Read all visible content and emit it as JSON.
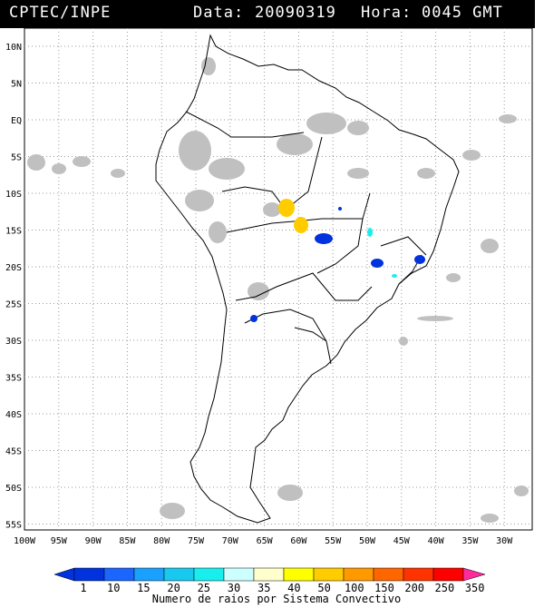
{
  "header": {
    "source": "CPTEC/INPE",
    "date_label": "Data:",
    "date_value": "20090319",
    "time_label": "Hora:",
    "time_value": "0045 GMT"
  },
  "map": {
    "lat_ticks": [
      "10N",
      "5N",
      "EQ",
      "5S",
      "10S",
      "15S",
      "20S",
      "25S",
      "30S",
      "35S",
      "40S",
      "45S",
      "50S",
      "55S"
    ],
    "lon_ticks": [
      "100W",
      "95W",
      "90W",
      "85W",
      "80W",
      "75W",
      "70W",
      "65W",
      "60W",
      "55W",
      "50W",
      "45W",
      "40W",
      "35W",
      "30W"
    ],
    "grid": true,
    "extent": {
      "lon": [
        -100,
        -26
      ],
      "lat": [
        -56,
        12
      ]
    }
  },
  "colorbar": {
    "labels": [
      "1",
      "10",
      "15",
      "20",
      "25",
      "30",
      "35",
      "40",
      "50",
      "100",
      "150",
      "200",
      "250",
      "350"
    ],
    "colors": [
      "#0033dd",
      "#1a66ff",
      "#1aa0ff",
      "#18c8ee",
      "#19eeee",
      "#ccffff",
      "#ffffcc",
      "#ffff00",
      "#ffcc00",
      "#ff9900",
      "#ff6600",
      "#ff3300",
      "#ff0000",
      "#ff2a9b"
    ],
    "title": "Numero de raios por Sistema Convectivo"
  },
  "colors": {
    "cloud": "#c0c0c0",
    "coast": "#000000",
    "background": "#ffffff"
  }
}
